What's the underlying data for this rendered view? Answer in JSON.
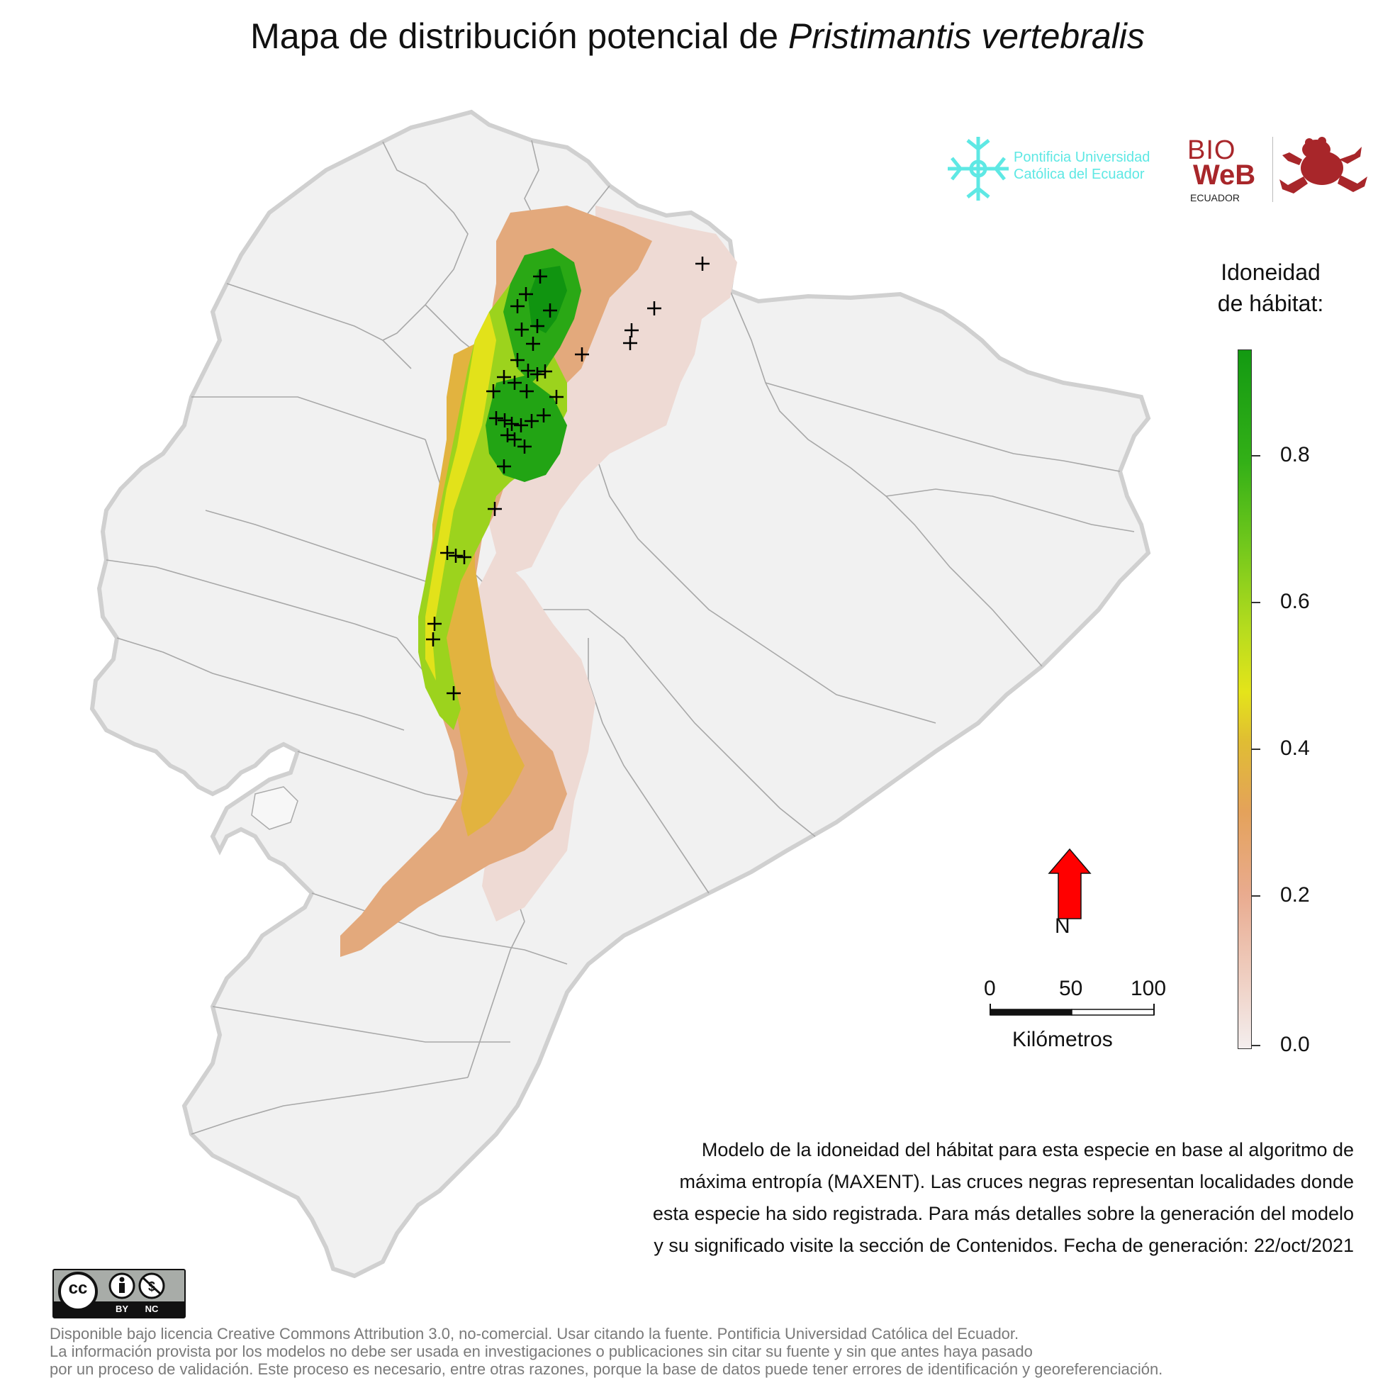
{
  "title": {
    "prefix": "Mapa de distribución potencial de",
    "species": "Pristimantis vertebralis"
  },
  "logos": {
    "puce_line1": "Pontificia Universidad",
    "puce_line2": "Católica del Ecuador",
    "bioweb_bio": "BIO",
    "bioweb_web": "WeB",
    "bioweb_country": "ECUADOR"
  },
  "legend": {
    "title_line1": "Idoneidad",
    "title_line2": "de hábitat:",
    "ticks": [
      "0.8",
      "0.6",
      "0.4",
      "0.2",
      "0.0"
    ],
    "colors": {
      "low": "#f4eeee",
      "mid_low": "#e9ab8f",
      "mid": "#e0bd33",
      "mid_high": "#72c81c",
      "high": "#139a12"
    }
  },
  "north": {
    "label": "N",
    "color": "#ff0000"
  },
  "scale": {
    "labels": [
      "0",
      "50",
      "100"
    ],
    "unit": "Kilómetros"
  },
  "description": {
    "line1": "Modelo de la idoneidad del hábitat para esta especie en base al algoritmo de",
    "line2": "máxima entropía (MAXENT). Las cruces negras representan localidades donde",
    "line3": "esta especie ha sido registrada. Para más detalles sobre la generación del modelo",
    "line4": "y su significado visite la sección de Contenidos. Fecha de generación: 22/oct/2021"
  },
  "license_badge": {
    "cc": "cc",
    "by": "BY",
    "nc": "NC"
  },
  "footer": {
    "line1": "Disponible bajo licencia Creative Commons Attribution 3.0, no-comercial. Usar citando la fuente. Pontificia Universidad Católica del Ecuador.",
    "line2": "La información provista por los modelos no debe ser usada en investigaciones o publicaciones sin citar su fuente y sin que antes haya pasado",
    "line3": "por un proceso de validación. Este proceso es necesario, entre otras razones, porque la base de datos puede tener errores de identificación y georeferenciación."
  }
}
